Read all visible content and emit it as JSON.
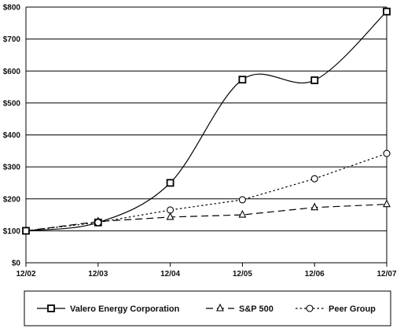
{
  "chart_data": {
    "type": "line",
    "categories": [
      "12/02",
      "12/03",
      "12/04",
      "12/05",
      "12/06",
      "12/07"
    ],
    "ylim": [
      0,
      800
    ],
    "yticks": [
      "$0",
      "$100",
      "$200",
      "$300",
      "$400",
      "$500",
      "$600",
      "$700",
      "$800"
    ],
    "ytick_values": [
      0,
      100,
      200,
      300,
      400,
      500,
      600,
      700,
      800
    ],
    "grid": true,
    "legend_position": "bottom",
    "series": [
      {
        "name": "Valero Energy Corporation",
        "values": [
          100,
          126,
          250,
          573,
          571,
          786
        ],
        "marker": "square",
        "dash": "solid",
        "smooth": true
      },
      {
        "name": "S&P 500",
        "values": [
          100,
          129,
          143,
          150,
          173,
          183
        ],
        "marker": "triangle",
        "dash": "longdash",
        "smooth": false
      },
      {
        "name": "Peer Group",
        "values": [
          100,
          126,
          165,
          197,
          263,
          342
        ],
        "marker": "circle",
        "dash": "dotted",
        "smooth": false
      }
    ]
  }
}
